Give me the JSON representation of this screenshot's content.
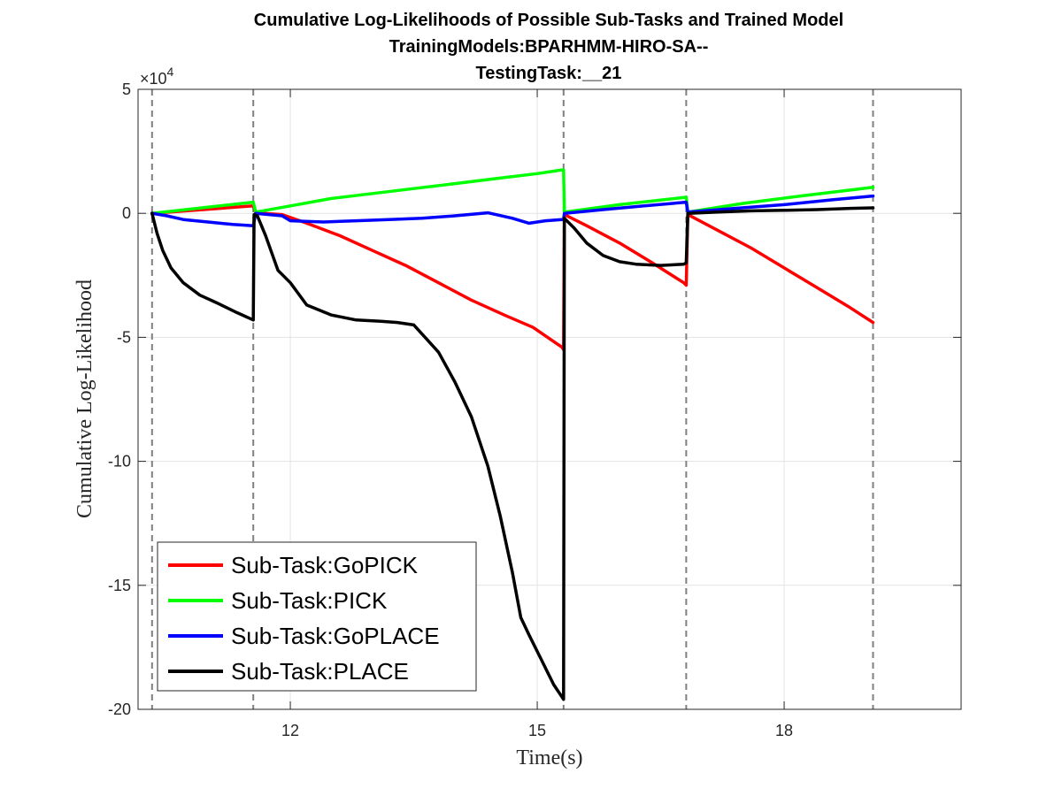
{
  "chart_data": {
    "type": "line",
    "title": [
      "Cumulative Log-Likelihoods of Possible Sub-Tasks and Trained Model",
      "TrainingModels:BPARHMM-HIRO-SA--",
      "TestingTask:__21"
    ],
    "xlabel": "Time(s)",
    "ylabel": "Cumulative Log-Likelihood",
    "xlim": [
      10.15,
      20.15
    ],
    "ylim": [
      -20,
      5
    ],
    "y_exponent_label": "×10",
    "y_exponent_power": "4",
    "xticks": [
      12,
      15,
      18
    ],
    "xtick_labels": [
      "12",
      "15",
      "18"
    ],
    "yticks": [
      5,
      0,
      -5,
      -10,
      -15,
      -20
    ],
    "ytick_labels": [
      "5",
      "0",
      "-5",
      "-10",
      "-15",
      "-20"
    ],
    "grid": true,
    "legend_position": "lower-left",
    "vlines": [
      10.32,
      11.55,
      15.32,
      16.81,
      19.08
    ],
    "series": [
      {
        "name": "Sub-Task:GoPICK",
        "color": "#ff0000",
        "x": [
          10.32,
          11.55,
          11.58,
          11.9,
          12.2,
          12.6,
          13.0,
          13.4,
          13.8,
          14.2,
          14.6,
          14.95,
          15.3,
          15.32,
          15.33,
          15.6,
          16.0,
          16.4,
          16.78,
          16.81,
          16.83,
          17.2,
          17.6,
          18.0,
          18.4,
          18.8,
          19.08
        ],
        "y": [
          0,
          0.3,
          0.02,
          -0.05,
          -0.4,
          -0.9,
          -1.5,
          -2.1,
          -2.8,
          -3.5,
          -4.1,
          -4.6,
          -5.4,
          -5.5,
          -0.05,
          -0.5,
          -1.2,
          -2.0,
          -2.8,
          -2.9,
          -0.05,
          -0.7,
          -1.4,
          -2.2,
          -3.0,
          -3.8,
          -4.4
        ]
      },
      {
        "name": "Sub-Task:PICK",
        "color": "#00ff00",
        "x": [
          10.32,
          11.55,
          11.58,
          12.0,
          12.5,
          13.0,
          13.5,
          14.0,
          14.5,
          15.0,
          15.3,
          15.32,
          15.33,
          16.0,
          16.81,
          16.83,
          17.5,
          18.2,
          19.08
        ],
        "y": [
          0,
          0.45,
          0.05,
          0.3,
          0.6,
          0.8,
          1.0,
          1.2,
          1.4,
          1.6,
          1.75,
          1.75,
          0.05,
          0.35,
          0.65,
          0.05,
          0.4,
          0.7,
          1.05
        ]
      },
      {
        "name": "Sub-Task:GoPLACE",
        "color": "#0000ff",
        "x": [
          10.32,
          10.5,
          10.7,
          11.0,
          11.3,
          11.55,
          11.58,
          11.9,
          12.0,
          12.4,
          12.8,
          13.2,
          13.6,
          14.0,
          14.4,
          14.7,
          14.9,
          15.1,
          15.3,
          15.32,
          15.33,
          15.8,
          16.3,
          16.81,
          16.83,
          17.4,
          18.0,
          18.6,
          19.08
        ],
        "y": [
          0,
          -0.1,
          -0.25,
          -0.35,
          -0.45,
          -0.5,
          0,
          -0.1,
          -0.3,
          -0.35,
          -0.3,
          -0.25,
          -0.2,
          -0.1,
          0.02,
          -0.2,
          -0.4,
          -0.3,
          -0.25,
          -0.25,
          0,
          0.15,
          0.3,
          0.45,
          0.05,
          0.2,
          0.35,
          0.55,
          0.7
        ]
      },
      {
        "name": "Sub-Task:PLACE",
        "color": "#000000",
        "x": [
          10.32,
          10.38,
          10.45,
          10.55,
          10.7,
          10.9,
          11.1,
          11.35,
          11.55,
          11.56,
          11.6,
          11.7,
          11.85,
          12.0,
          12.2,
          12.5,
          12.8,
          13.1,
          13.3,
          13.5,
          13.8,
          14.0,
          14.2,
          14.4,
          14.55,
          14.7,
          14.8,
          14.9,
          15.05,
          15.2,
          15.3,
          15.32,
          15.33,
          15.45,
          15.6,
          15.8,
          16.0,
          16.2,
          16.5,
          16.78,
          16.81,
          16.83,
          17.2,
          17.6,
          18.0,
          18.4,
          18.8,
          19.08
        ],
        "y": [
          0,
          -0.8,
          -1.5,
          -2.2,
          -2.8,
          -3.3,
          -3.6,
          -4.0,
          -4.3,
          -0.05,
          -0.1,
          -0.9,
          -2.3,
          -2.8,
          -3.7,
          -4.1,
          -4.3,
          -4.35,
          -4.4,
          -4.5,
          -5.6,
          -6.8,
          -8.2,
          -10.2,
          -12.2,
          -14.5,
          -16.3,
          -17.0,
          -18.0,
          -19.0,
          -19.5,
          -19.6,
          -0.2,
          -0.6,
          -1.2,
          -1.7,
          -1.95,
          -2.05,
          -2.1,
          -2.05,
          -2.0,
          0,
          0.05,
          0.1,
          0.12,
          0.15,
          0.2,
          0.22
        ]
      }
    ]
  }
}
